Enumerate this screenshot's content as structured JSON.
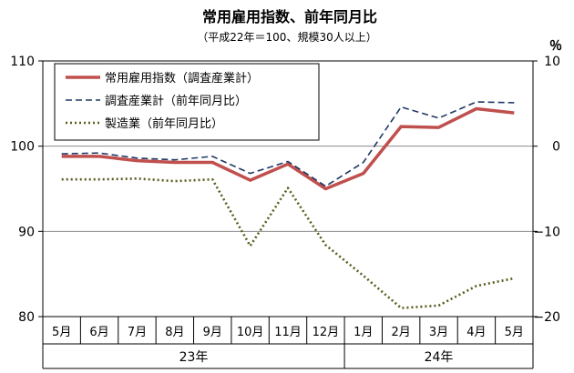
{
  "chart_data": {
    "type": "line",
    "title": "常用雇用指数、前年同月比",
    "subtitle": "（平成22年＝100、規模30人以上）",
    "right_unit": "％",
    "categories": [
      "5月",
      "6月",
      "7月",
      "8月",
      "9月",
      "10月",
      "11月",
      "12月",
      "1月",
      "2月",
      "3月",
      "4月",
      "5月"
    ],
    "year_groups": [
      {
        "label": "23年",
        "start": 0,
        "end": 7
      },
      {
        "label": "24年",
        "start": 8,
        "end": 12
      }
    ],
    "left_axis": {
      "min": 80,
      "max": 110,
      "ticks": [
        80,
        90,
        100,
        110
      ]
    },
    "right_axis": {
      "min": -20,
      "max": 10,
      "ticks": [
        -20,
        -10,
        0,
        10
      ]
    },
    "series": [
      {
        "name": "常用雇用指数（調査産業計）",
        "axis": "left",
        "color": "#c0504d",
        "style": "solid",
        "values": [
          98.8,
          98.8,
          98.3,
          98.1,
          98.1,
          96.0,
          97.9,
          95.0,
          96.8,
          102.3,
          102.2,
          104.4,
          103.9
        ]
      },
      {
        "name": "調査産業計（前年同月比）",
        "axis": "right",
        "color": "#1f3864",
        "style": "dashed",
        "values": [
          -0.9,
          -0.8,
          -1.4,
          -1.6,
          -1.2,
          -3.2,
          -1.8,
          -4.7,
          -1.9,
          4.6,
          3.3,
          5.2,
          5.1
        ]
      },
      {
        "name": "製造業（前年同月比）",
        "axis": "right",
        "color": "#5b5b1c",
        "style": "dotted",
        "values": [
          -3.9,
          -3.9,
          -3.8,
          -4.1,
          -3.9,
          -11.7,
          -4.9,
          -11.6,
          -15.2,
          -19.0,
          -18.7,
          -16.4,
          -15.5
        ]
      }
    ]
  }
}
